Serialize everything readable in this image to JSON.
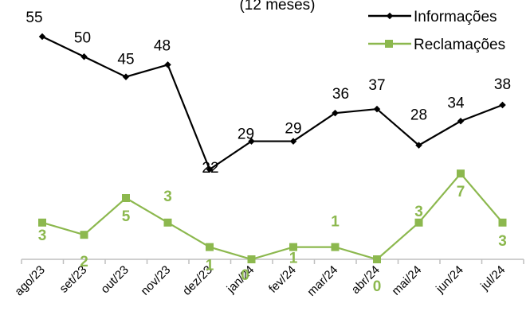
{
  "chart_data": {
    "type": "line",
    "title_fragment": "(12 meses)",
    "categories": [
      "ago/23",
      "set/23",
      "out/23",
      "nov/23",
      "dez/23",
      "jan/24",
      "fev/24",
      "mar/24",
      "abr/24",
      "mai/24",
      "jun/24",
      "jul/24"
    ],
    "series": [
      {
        "name": "Informações",
        "color": "#000000",
        "marker": "diamond",
        "values": [
          55,
          50,
          45,
          48,
          22,
          29,
          29,
          36,
          37,
          28,
          34,
          38
        ]
      },
      {
        "name": "Reclamações",
        "color": "#8cb84e",
        "marker": "square",
        "values": [
          3,
          2,
          5,
          3,
          1,
          0,
          1,
          1,
          0,
          3,
          7,
          3
        ]
      }
    ],
    "legend": "top-right",
    "grid": false
  }
}
